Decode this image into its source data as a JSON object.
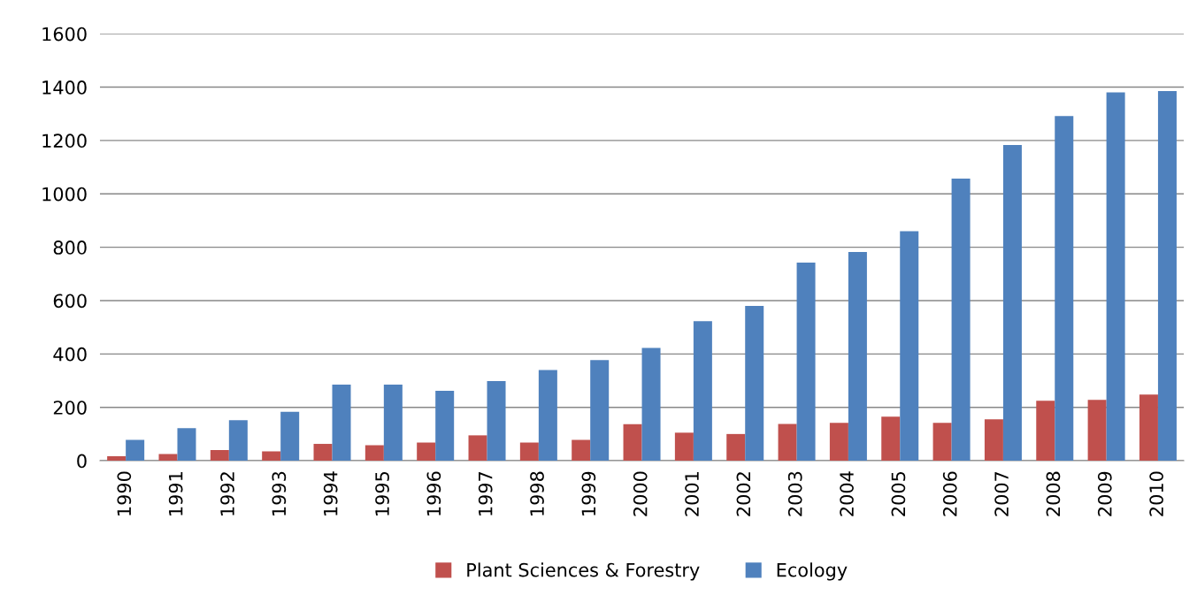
{
  "chart_data": {
    "type": "bar",
    "categories": [
      "1990",
      "1991",
      "1992",
      "1993",
      "1994",
      "1995",
      "1996",
      "1997",
      "1998",
      "1999",
      "2000",
      "2001",
      "2002",
      "2003",
      "2004",
      "2005",
      "2006",
      "2007",
      "2008",
      "2009",
      "2010"
    ],
    "series": [
      {
        "name": "Plant Sciences & Forestry",
        "color": "#c0504d",
        "values": [
          17,
          25,
          40,
          35,
          63,
          58,
          68,
          95,
          68,
          78,
          137,
          105,
          100,
          138,
          142,
          165,
          142,
          155,
          225,
          228,
          248
        ]
      },
      {
        "name": "Ecology",
        "color": "#4f81bd",
        "values": [
          78,
          122,
          152,
          183,
          285,
          285,
          262,
          298,
          340,
          377,
          423,
          523,
          580,
          742,
          782,
          860,
          1057,
          1183,
          1292,
          1380,
          1385
        ]
      }
    ],
    "ylim": [
      0,
      1600
    ],
    "yticks": [
      0,
      200,
      400,
      600,
      800,
      1000,
      1200,
      1400,
      1600
    ],
    "grid": "y",
    "legend": "bottom"
  }
}
